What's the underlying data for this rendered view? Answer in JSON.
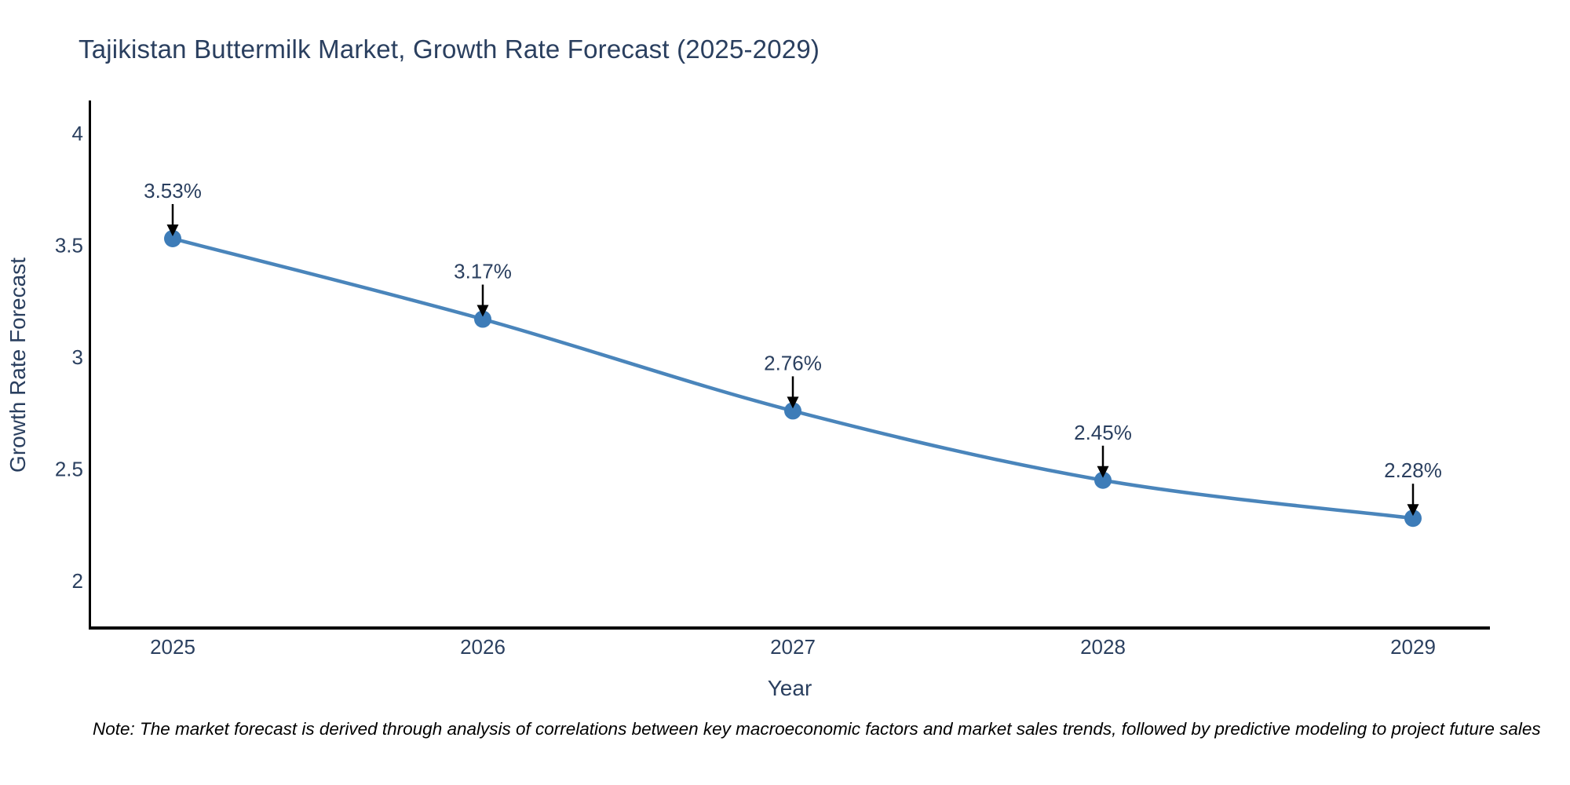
{
  "header": {
    "title": "Tajikistan Buttermilk Market, Growth Rate Forecast (2025-2029)"
  },
  "footnote": {
    "text": "Note: The market forecast is derived through analysis of correlations between key macroeconomic factors and market sales trends, followed by predictive modeling to project future sales"
  },
  "colors": {
    "title_text": "#2a3f5f",
    "axis_text": "#2a3f5f",
    "axis_line": "#000000",
    "series_line": "#4a85bb",
    "marker_fill": "#3d7cb8",
    "annotation_arrow": "#000000",
    "note_text": "#000000",
    "background": "#ffffff"
  },
  "chart_data": {
    "type": "line",
    "title": "Tajikistan Buttermilk Market, Growth Rate Forecast (2025-2029)",
    "xlabel": "Year",
    "ylabel": "Growth Rate Forecast",
    "categories": [
      2025,
      2026,
      2027,
      2028,
      2029
    ],
    "values": [
      3.53,
      3.17,
      2.76,
      2.45,
      2.28
    ],
    "labels": [
      "3.53%",
      "3.17%",
      "2.76%",
      "2.45%",
      "2.28%"
    ],
    "yticks": [
      2,
      2.5,
      3,
      3.5,
      4
    ],
    "ylim": [
      1.79,
      4.14
    ],
    "grid": false,
    "legend_position": "none",
    "line_shape": "spline",
    "marker": "circle",
    "annotations": "value labels above each point with downward black arrows"
  }
}
